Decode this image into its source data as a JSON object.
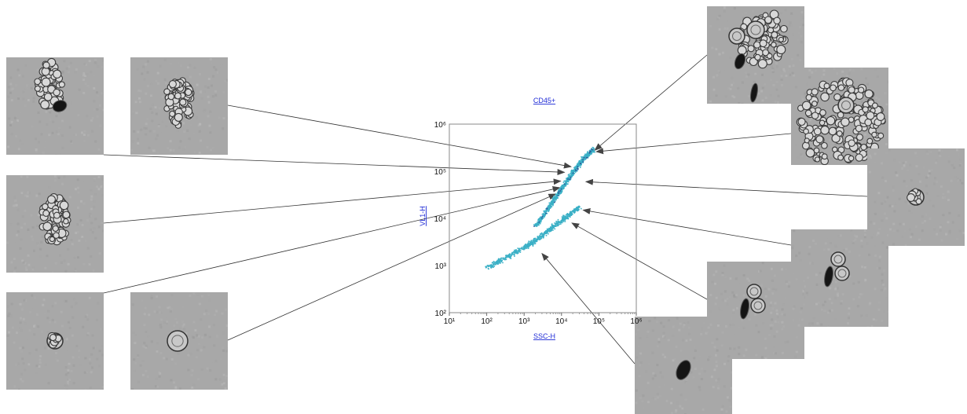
{
  "colors": {
    "points": "#3bb0c6",
    "points_highlight": "#2a5c9a",
    "link_text": "#1f2bd6",
    "axis": "#888888",
    "connector": "#333333",
    "thumb_bg": "#a8a8a8"
  },
  "chart_data": {
    "type": "scatter",
    "title": "CD45+",
    "xlabel": "SSC-H",
    "ylabel": "VL1-H",
    "xscale": "log",
    "yscale": "log",
    "xlim": [
      10,
      1000000
    ],
    "ylim": [
      100,
      1000000
    ],
    "xtick_labels": [
      "10¹",
      "10²",
      "10³",
      "10⁴",
      "10⁵",
      "10⁶"
    ],
    "ytick_labels": [
      "10²",
      "10³",
      "10⁴",
      "10⁵",
      "10⁶"
    ],
    "grid": false,
    "population_lower": {
      "description_points": [
        [
          100,
          900
        ],
        [
          300,
          1500
        ],
        [
          1000,
          2500
        ],
        [
          2500,
          4000
        ],
        [
          6000,
          7000
        ],
        [
          15000,
          12000
        ],
        [
          30000,
          18000
        ]
      ]
    },
    "population_upper": {
      "description_points": [
        [
          2000,
          7000
        ],
        [
          5000,
          20000
        ],
        [
          10000,
          45000
        ],
        [
          20000,
          100000
        ],
        [
          40000,
          200000
        ],
        [
          70000,
          300000
        ]
      ]
    },
    "annotations": [
      {
        "target": [
          78000,
          280000
        ],
        "image": "thumb-right-1"
      },
      {
        "target": [
          85000,
          260000
        ],
        "image": "thumb-right-2"
      },
      {
        "target": [
          45000,
          60000
        ],
        "image": "thumb-right-3"
      },
      {
        "target": [
          38000,
          15000
        ],
        "image": "thumb-right-4"
      },
      {
        "target": [
          19000,
          8000
        ],
        "image": "thumb-right-5"
      },
      {
        "target": [
          3000,
          1800
        ],
        "image": "thumb-right-6"
      },
      {
        "target": [
          18000,
          125000
        ],
        "image": "thumb-left-2"
      },
      {
        "target": [
          12000,
          95000
        ],
        "image": "thumb-left-1"
      },
      {
        "target": [
          9500,
          62000
        ],
        "image": "thumb-left-3"
      },
      {
        "target": [
          9000,
          45000
        ],
        "image": "thumb-left-4"
      },
      {
        "target": [
          7000,
          33000
        ],
        "image": "thumb-left-5"
      }
    ]
  },
  "thumbnails": [
    {
      "id": "thumb-left-1",
      "kind": "cluster-dark-cell"
    },
    {
      "id": "thumb-left-2",
      "kind": "cluster"
    },
    {
      "id": "thumb-left-3",
      "kind": "cluster"
    },
    {
      "id": "thumb-left-4",
      "kind": "single-cell"
    },
    {
      "id": "thumb-left-5",
      "kind": "single-cell-round"
    },
    {
      "id": "thumb-right-1",
      "kind": "cluster-with-dark-cells"
    },
    {
      "id": "thumb-right-2",
      "kind": "dense-cluster"
    },
    {
      "id": "thumb-right-3",
      "kind": "single-cell"
    },
    {
      "id": "thumb-right-4",
      "kind": "dark-and-round-cells"
    },
    {
      "id": "thumb-right-5",
      "kind": "dark-and-round-cells"
    },
    {
      "id": "thumb-right-6",
      "kind": "dark-cell"
    }
  ]
}
